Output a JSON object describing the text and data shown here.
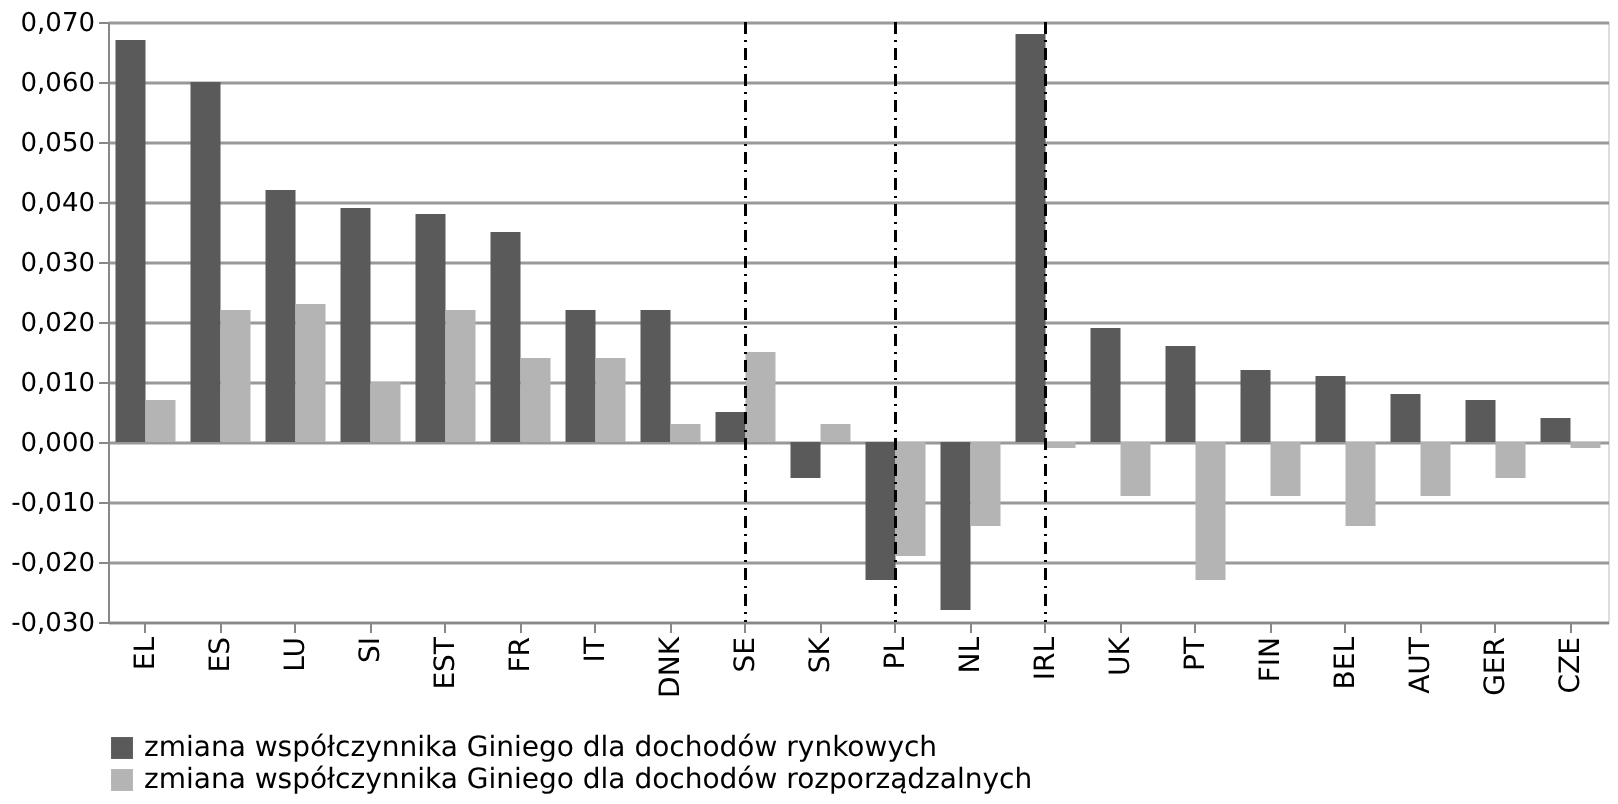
{
  "chart_data": {
    "type": "bar",
    "categories": [
      "EL",
      "ES",
      "LU",
      "SI",
      "EST",
      "FR",
      "IT",
      "DNK",
      "SE",
      "SK",
      "PL",
      "NL",
      "IRL",
      "UK",
      "PT",
      "FIN",
      "BEL",
      "AUT",
      "GER",
      "CZE"
    ],
    "series": [
      {
        "name": "zmiana współczynnika Giniego dla dochodów rynkowych",
        "color": "#5a5a5a",
        "values": [
          0.067,
          0.06,
          0.042,
          0.039,
          0.038,
          0.035,
          0.022,
          0.022,
          0.005,
          -0.006,
          -0.023,
          -0.028,
          0.068,
          0.019,
          0.016,
          0.012,
          0.011,
          0.008,
          0.007,
          0.004
        ]
      },
      {
        "name": "zmiana współczynnika Giniego dla dochodów rozporządzalnych",
        "color": "#b4b4b4",
        "values": [
          0.007,
          0.022,
          0.023,
          0.01,
          0.022,
          0.014,
          0.014,
          0.003,
          0.015,
          0.003,
          -0.019,
          -0.014,
          -0.001,
          -0.009,
          -0.023,
          -0.009,
          -0.014,
          -0.009,
          -0.006,
          -0.001
        ]
      }
    ],
    "ylim": [
      -0.03,
      0.07
    ],
    "yticks": [
      {
        "value": -0.03,
        "label": "-0,030"
      },
      {
        "value": -0.02,
        "label": "-0,020"
      },
      {
        "value": -0.01,
        "label": "-0,010"
      },
      {
        "value": 0,
        "label": "0,000"
      },
      {
        "value": 0.01,
        "label": "0,010"
      },
      {
        "value": 0.02,
        "label": "0,020"
      },
      {
        "value": 0.03,
        "label": "0,030"
      },
      {
        "value": 0.04,
        "label": "0,040"
      },
      {
        "value": 0.05,
        "label": "0,050"
      },
      {
        "value": 0.06,
        "label": "0,060"
      },
      {
        "value": 0.07,
        "label": "0,070"
      }
    ],
    "ref_lines": [
      {
        "axis": "x",
        "value": "SE",
        "color": "#000000",
        "line_style": "dashed"
      },
      {
        "axis": "x",
        "value": "PL",
        "color": "#000000",
        "line_style": "dashed"
      },
      {
        "axis": "x",
        "value": "IRL",
        "color": "#000000",
        "line_style": "dashed"
      }
    ],
    "grid": "y",
    "legend": "bottom"
  }
}
